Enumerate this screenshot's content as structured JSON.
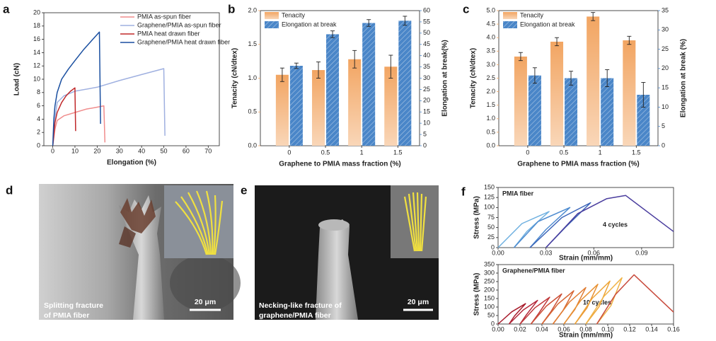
{
  "chart_data": [
    {
      "type": "line",
      "label": "a",
      "xlabel": "Elongation (%)",
      "ylabel": "Load (cN)",
      "xlim": [
        -4,
        75
      ],
      "xticks": [
        0,
        10,
        20,
        30,
        40,
        50,
        60,
        70
      ],
      "ylim": [
        0,
        20
      ],
      "yticks": [
        0,
        2,
        4,
        6,
        8,
        10,
        12,
        14,
        16,
        18,
        20
      ],
      "legend": "upper right",
      "series": [
        {
          "name": "PMIA as-spun fiber",
          "color": "#f08c8c",
          "x": [
            0,
            1,
            2,
            5,
            10,
            15,
            20,
            23,
            23.5
          ],
          "y": [
            0,
            2.5,
            3.8,
            4.5,
            5.0,
            5.5,
            5.8,
            6.0,
            0.5
          ]
        },
        {
          "name": "Graphene/PMIA as-spun fiber",
          "color": "#9fb0e0",
          "x": [
            0,
            1,
            2,
            5,
            10,
            20,
            30,
            40,
            50,
            50.5
          ],
          "y": [
            0,
            4,
            6.5,
            7.5,
            8.2,
            8.8,
            9.8,
            10.7,
            11.6,
            1.5
          ]
        },
        {
          "name": "PMIA heat drawn fiber",
          "color": "#c0282a",
          "x": [
            0,
            1,
            2,
            4,
            6,
            8,
            10,
            10.3
          ],
          "y": [
            0,
            3.5,
            5,
            6.5,
            7.5,
            8.2,
            8.7,
            2.2
          ]
        },
        {
          "name": "Graphene/PMIA heat drawn fiber",
          "color": "#1a4fa0",
          "x": [
            0,
            0.5,
            1,
            2,
            4,
            7,
            10,
            14,
            18,
            21,
            21.5
          ],
          "y": [
            0,
            4,
            6,
            8,
            10,
            11.5,
            12.8,
            14.5,
            16,
            17.1,
            3.3
          ]
        }
      ]
    },
    {
      "type": "bar",
      "label": "b",
      "categories": [
        "0",
        "0.5",
        "1",
        "1.5"
      ],
      "xlabel": "Graphene to PMIA mass fraction (%)",
      "ylabel": "Tenacity (cN/dtex)",
      "y2label": "Elongation at break(%)",
      "ylim": [
        0,
        2
      ],
      "yticks": [
        {
          "value": 0,
          "label": "0.0"
        },
        0.5,
        {
          "value": 1,
          "label": "1.0"
        },
        1.5,
        {
          "value": 2,
          "label": "2.0"
        }
      ],
      "y2lim": [
        0,
        60
      ],
      "y2ticks": [
        0,
        5,
        10,
        15,
        20,
        25,
        30,
        35,
        40,
        45,
        50,
        55,
        60
      ],
      "legend": "upper left",
      "series": [
        {
          "name": "Tenacity",
          "color": "#f2a562",
          "values": [
            1.05,
            1.12,
            1.28,
            1.17
          ],
          "errors": [
            0.1,
            0.12,
            0.13,
            0.17
          ]
        },
        {
          "name": "Elongation at break",
          "color": "#4a86c8",
          "axis": "y2",
          "values": [
            35.5,
            49.5,
            54.5,
            55.5
          ],
          "errors": [
            1.2,
            1.5,
            1.5,
            2.0
          ]
        }
      ]
    },
    {
      "type": "bar",
      "label": "c",
      "categories": [
        "0",
        "0.5",
        "1",
        "1.5"
      ],
      "xlabel": "Graphene to PMIA mass fraction (%)",
      "ylabel": "Tenacity (cN/dtex)",
      "y2label": "Elongation at break (%)",
      "ylim": [
        0,
        5
      ],
      "yticks": [
        {
          "value": 0,
          "label": "0.0"
        },
        0.5,
        {
          "value": 1,
          "label": "1.0"
        },
        1.5,
        {
          "value": 2,
          "label": "2.0"
        },
        2.5,
        {
          "value": 3,
          "label": "3.0"
        },
        3.5,
        {
          "value": 4,
          "label": "4.0"
        },
        4.5,
        {
          "value": 5,
          "label": "5.0"
        }
      ],
      "y2lim": [
        0,
        35
      ],
      "y2ticks": [
        0,
        5,
        10,
        15,
        20,
        25,
        30,
        35
      ],
      "legend": "upper left",
      "series": [
        {
          "name": "Tenacity",
          "color": "#f2a562",
          "values": [
            3.3,
            3.85,
            4.78,
            3.9
          ],
          "errors": [
            0.15,
            0.15,
            0.15,
            0.15
          ]
        },
        {
          "name": "Elongation at break",
          "color": "#4a86c8",
          "axis": "y2",
          "values": [
            18.2,
            17.5,
            17.5,
            13.2
          ],
          "errors": [
            2,
            1.8,
            2.2,
            3.2
          ]
        }
      ]
    },
    {
      "type": "line",
      "label": "f",
      "title": "PMIA fiber",
      "annotation": "4 cycles",
      "xlabel": "Strain (mm/mm)",
      "ylabel": "Stress (MPa)",
      "xlim": [
        0,
        0.11
      ],
      "xticks": [
        {
          "value": 0,
          "label": "0.00"
        },
        0.03,
        0.06,
        0.09
      ],
      "ylim": [
        0,
        150
      ],
      "yticks": [
        0,
        25,
        50,
        75,
        100,
        125,
        150
      ],
      "series": [
        {
          "color": "#6fb0e0",
          "x": [
            0,
            0.015,
            0.032,
            0.018,
            0.01
          ],
          "y": [
            0,
            60,
            90,
            40,
            0
          ]
        },
        {
          "color": "#4f8cd0",
          "x": [
            0.01,
            0.025,
            0.045,
            0.03,
            0.02
          ],
          "y": [
            0,
            65,
            100,
            45,
            0
          ]
        },
        {
          "color": "#3a64b8",
          "x": [
            0.02,
            0.04,
            0.058,
            0.042,
            0.03
          ],
          "y": [
            0,
            75,
            112,
            50,
            0
          ]
        },
        {
          "color": "#4a3d9e",
          "x": [
            0.03,
            0.05,
            0.068,
            0.08,
            0.11
          ],
          "y": [
            0,
            85,
            122,
            130,
            40
          ]
        }
      ]
    },
    {
      "type": "line",
      "title": "Graphene/PMIA fiber",
      "annotation": "10 cycles",
      "xlabel": "Strain (mm/mm)",
      "ylabel": "Stress (MPa)",
      "xlim": [
        0,
        0.16
      ],
      "xticks": [
        {
          "value": 0,
          "label": "0.00"
        },
        0.02,
        0.04,
        0.06,
        0.08,
        {
          "value": 0.1,
          "label": "0.10"
        },
        0.12,
        0.14,
        0.16
      ],
      "ylim": [
        0,
        350
      ],
      "yticks": [
        0,
        50,
        100,
        150,
        200,
        250,
        300,
        350
      ],
      "series": [
        {
          "color": "#a81c2c",
          "x": [
            0,
            0.0125,
            0.025,
            0.015,
            0.01
          ],
          "y": [
            0,
            72,
            120,
            48,
            0
          ]
        },
        {
          "color": "#b4283a",
          "x": [
            0.01,
            0.023,
            0.036,
            0.026,
            0.02
          ],
          "y": [
            0,
            83,
            139,
            56,
            0
          ]
        },
        {
          "color": "#c03a3c",
          "x": [
            0.02,
            0.0335,
            0.047,
            0.037,
            0.03
          ],
          "y": [
            0,
            95,
            158,
            63,
            0
          ]
        },
        {
          "color": "#cc5038",
          "x": [
            0.03,
            0.044,
            0.058,
            0.048,
            0.04
          ],
          "y": [
            0,
            106,
            177,
            71,
            0
          ]
        },
        {
          "color": "#d66634",
          "x": [
            0.04,
            0.0545,
            0.069,
            0.059,
            0.05
          ],
          "y": [
            0,
            118,
            196,
            78,
            0
          ]
        },
        {
          "color": "#e07c32",
          "x": [
            0.05,
            0.065,
            0.08,
            0.07,
            0.06
          ],
          "y": [
            0,
            129,
            215,
            86,
            0
          ]
        },
        {
          "color": "#e89234",
          "x": [
            0.06,
            0.0755,
            0.091,
            0.081,
            0.07
          ],
          "y": [
            0,
            140,
            234,
            94,
            0
          ]
        },
        {
          "color": "#eea63a",
          "x": [
            0.07,
            0.086,
            0.102,
            0.092,
            0.08
          ],
          "y": [
            0,
            152,
            253,
            101,
            0
          ]
        },
        {
          "color": "#f0b448",
          "x": [
            0.08,
            0.0965,
            0.113,
            0.103,
            0.09
          ],
          "y": [
            0,
            163,
            272,
            109,
            0
          ]
        },
        {
          "color": "#c84a3c",
          "x": [
            0.09,
            0.107,
            0.124,
            0.16
          ],
          "y": [
            0,
            174,
            290,
            70
          ]
        }
      ]
    }
  ],
  "panels": [
    {
      "label": "d",
      "caption": [
        "Splitting fracture",
        "of PMIA fiber"
      ],
      "scale_bar": "20 μm"
    },
    {
      "label": "e",
      "caption": [
        "Necking-like fracture of",
        "graphene/PMIA fiber"
      ],
      "scale_bar": "20 μm"
    }
  ]
}
